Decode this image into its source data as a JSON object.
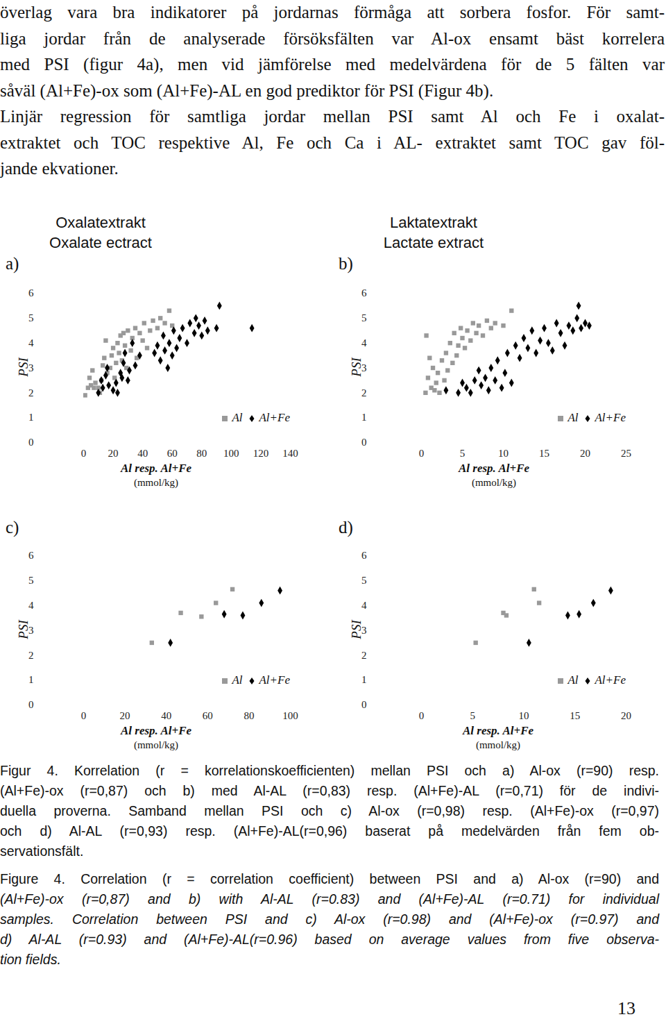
{
  "body_text": [
    [
      "överlag vara bra indikatorer på jordarnas förmåga att sorbera fosfor. För samt-",
      "liga jordar från de analyserade försöksfälten var Al-ox ensamt bäst korrelera",
      "med PSI (figur 4a), men vid jämförelse med medelvärdena för de 5 fälten var",
      "såväl (Al+Fe)-ox som (Al+Fe)-AL en god prediktor för PSI (Figur 4b)."
    ],
    [
      "Linjär regression för samtliga jordar mellan PSI samt Al och Fe i oxalat-",
      "extraktet och TOC respektive Al, Fe och Ca i AL- extraktet samt TOC gav föl-",
      "jande ekvationer."
    ]
  ],
  "chart_data": [
    {
      "type": "scatter",
      "panel": "a)",
      "title": "Oxalatextrakt",
      "subtitle": "Oxalate ectract",
      "xlabel": "Al resp. Al+Fe",
      "xlabel_unit": "(mmol/kg)",
      "ylabel": "PSI",
      "xlim": [
        0,
        140
      ],
      "xticks": [
        0,
        20,
        40,
        60,
        80,
        100,
        120,
        140
      ],
      "ylim": [
        0,
        6
      ],
      "yticks": [
        0,
        1,
        2,
        3,
        4,
        5,
        6
      ],
      "legend": "bottom-right",
      "series": [
        {
          "name": "Al",
          "color": "#999999",
          "marker": "square",
          "x": [
            1,
            3,
            4,
            5,
            6,
            7,
            8,
            10,
            11,
            12,
            13,
            14,
            15,
            16,
            18,
            19,
            20,
            21,
            22,
            23,
            24,
            25,
            26,
            27,
            28,
            29,
            30,
            32,
            33,
            35,
            36,
            38,
            40,
            41,
            43,
            45,
            47,
            50,
            52,
            55,
            58,
            60
          ],
          "y": [
            1.9,
            2.2,
            2.6,
            2.3,
            2.9,
            2.2,
            2.4,
            2.2,
            2.0,
            2.5,
            3.1,
            3.4,
            4.1,
            2.8,
            3.0,
            3.5,
            3.8,
            2.6,
            3.2,
            4.0,
            3.6,
            4.3,
            3.3,
            4.4,
            3.9,
            3.0,
            4.5,
            3.7,
            4.2,
            4.6,
            3.4,
            4.4,
            4.1,
            4.8,
            3.8,
            4.5,
            4.9,
            4.6,
            5.0,
            4.8,
            5.3,
            4.7
          ]
        },
        {
          "name": "Al+Fe",
          "color": "#000000",
          "marker": "diamond",
          "x": [
            10,
            12,
            13,
            15,
            16,
            17,
            20,
            22,
            23,
            25,
            26,
            27,
            28,
            30,
            31,
            33,
            35,
            38,
            48,
            50,
            52,
            54,
            55,
            57,
            58,
            60,
            61,
            63,
            65,
            67,
            70,
            72,
            75,
            76,
            78,
            80,
            82,
            84,
            90,
            92,
            114
          ],
          "y": [
            2.0,
            2.5,
            2.2,
            2.7,
            3.0,
            2.3,
            2.1,
            2.4,
            2.0,
            2.8,
            2.6,
            3.2,
            3.6,
            2.5,
            2.9,
            4.0,
            3.1,
            3.5,
            3.6,
            3.9,
            3.3,
            4.3,
            3.7,
            3.0,
            4.0,
            3.5,
            4.5,
            3.8,
            4.2,
            4.6,
            4.0,
            4.8,
            4.4,
            5.0,
            4.7,
            4.3,
            4.9,
            4.5,
            4.6,
            5.5,
            4.6
          ]
        }
      ]
    },
    {
      "type": "scatter",
      "panel": "b)",
      "title": "Laktatextrakt",
      "subtitle": "Lactate extract",
      "xlabel": "Al resp. Al+Fe",
      "xlabel_unit": "(mmol/kg)",
      "ylabel": "PSI",
      "xlim": [
        0,
        25
      ],
      "xticks": [
        0,
        5,
        10,
        15,
        20,
        25
      ],
      "ylim": [
        0,
        6
      ],
      "yticks": [
        0,
        1,
        2,
        3,
        4,
        5,
        6
      ],
      "legend": "bottom-right",
      "series": [
        {
          "name": "Al",
          "color": "#999999",
          "marker": "square",
          "x": [
            0.5,
            0.6,
            0.8,
            1.0,
            1.2,
            1.4,
            1.6,
            1.8,
            2.0,
            2.2,
            2.5,
            2.8,
            3.0,
            3.2,
            3.5,
            3.8,
            4.0,
            4.3,
            4.5,
            4.8,
            5.0,
            5.3,
            5.6,
            6.0,
            6.3,
            6.7,
            7.0,
            7.5,
            8.0,
            8.5,
            9.0,
            10.0,
            11.0
          ],
          "y": [
            2.0,
            4.3,
            2.6,
            3.4,
            2.2,
            3.0,
            2.1,
            2.4,
            2.8,
            2.0,
            3.3,
            2.5,
            3.6,
            2.9,
            4.0,
            3.2,
            4.4,
            3.5,
            3.9,
            4.6,
            4.2,
            3.8,
            4.5,
            4.1,
            4.8,
            4.4,
            4.7,
            4.3,
            4.9,
            4.6,
            4.8,
            4.7,
            5.3
          ]
        },
        {
          "name": "Al+Fe",
          "color": "#000000",
          "marker": "diamond",
          "x": [
            3.0,
            4.5,
            5.0,
            5.5,
            6.0,
            6.5,
            7.0,
            7.3,
            7.8,
            8.2,
            8.5,
            9.0,
            9.3,
            9.8,
            10.2,
            10.5,
            11.0,
            11.5,
            12.0,
            12.5,
            13.0,
            13.5,
            14.0,
            14.5,
            15.0,
            15.5,
            16.0,
            16.5,
            17.0,
            17.5,
            18.0,
            18.5,
            19.0,
            19.5,
            20.0,
            20.5,
            19.2
          ],
          "y": [
            2.1,
            2.0,
            2.4,
            2.2,
            2.0,
            2.5,
            2.9,
            2.3,
            2.6,
            2.1,
            3.0,
            2.5,
            3.3,
            2.2,
            2.8,
            3.6,
            2.4,
            3.9,
            3.4,
            4.2,
            3.8,
            4.5,
            3.6,
            4.1,
            4.6,
            4.0,
            3.7,
            4.8,
            4.4,
            3.9,
            4.7,
            4.5,
            5.0,
            4.6,
            4.8,
            4.7,
            5.5
          ]
        }
      ]
    },
    {
      "type": "scatter",
      "panel": "c)",
      "xlabel": "Al resp. Al+Fe",
      "xlabel_unit": "(mmol/kg)",
      "ylabel": "PSI",
      "xlim": [
        0,
        100
      ],
      "xticks": [
        0,
        20,
        40,
        60,
        80,
        100
      ],
      "ylim": [
        0,
        6
      ],
      "yticks": [
        0,
        1,
        2,
        3,
        4,
        5,
        6
      ],
      "legend": "bottom-right",
      "series": [
        {
          "name": "Al",
          "color": "#999999",
          "marker": "square",
          "x": [
            33,
            47,
            57,
            64,
            72
          ],
          "y": [
            2.5,
            3.7,
            3.55,
            4.1,
            4.65
          ]
        },
        {
          "name": "Al+Fe",
          "color": "#000000",
          "marker": "diamond",
          "x": [
            42,
            68,
            77,
            86,
            95
          ],
          "y": [
            2.5,
            3.65,
            3.6,
            4.1,
            4.6
          ]
        }
      ]
    },
    {
      "type": "scatter",
      "panel": "d)",
      "xlabel": "Al resp. Al+Fe",
      "xlabel_unit": "(mmol/kg)",
      "ylabel": "PSI",
      "xlim": [
        0,
        20
      ],
      "xticks": [
        0,
        5,
        10,
        15,
        20
      ],
      "ylim": [
        0,
        6
      ],
      "yticks": [
        0,
        1,
        2,
        3,
        4,
        5,
        6
      ],
      "legend": "bottom-right",
      "series": [
        {
          "name": "Al",
          "color": "#999999",
          "marker": "square",
          "x": [
            5.3,
            8.0,
            8.3,
            11.0,
            11.5
          ],
          "y": [
            2.5,
            3.7,
            3.6,
            4.65,
            4.1
          ]
        },
        {
          "name": "Al+Fe",
          "color": "#000000",
          "marker": "diamond",
          "x": [
            10.5,
            14.3,
            15.4,
            16.8,
            18.5
          ],
          "y": [
            2.5,
            3.6,
            3.65,
            4.1,
            4.6
          ]
        }
      ]
    }
  ],
  "caption": {
    "sv": [
      "Figur 4. Korrelation (r = korrelationskoefficienten) mellan PSI och a) Al-ox (r=90) resp.",
      "(Al+Fe)-ox (r=0,87) och b) med Al-AL (r=0,83) resp. (Al+Fe)-AL (r=0,71) för de indivi-",
      "duella proverna. Samband mellan PSI och c) Al-ox (r=0,98) resp. (Al+Fe)-ox (r=0,97)",
      "och d) Al-AL (r=0,93) resp. (Al+Fe)-AL(r=0,96) baserat på medelvärden från fem ob-",
      "servationsfält."
    ],
    "en": [
      "Figure 4. Correlation (r = correlation coefficient) between PSI and  a) Al-ox (r=90) and",
      "(Al+Fe)-ox (r=0,87) and  b) with  Al-AL (r=0.83) and (Al+Fe)-AL (r=0.71) for individual",
      "samples. Correlation between PSI and c) Al-ox (r=0.98) and (Al+Fe)-ox (r=0.97) and",
      "d) Al-AL (r=0.93) and  (Al+Fe)-AL(r=0.96) based on average values from five observa-",
      "tion fields."
    ]
  },
  "page_number": "13"
}
